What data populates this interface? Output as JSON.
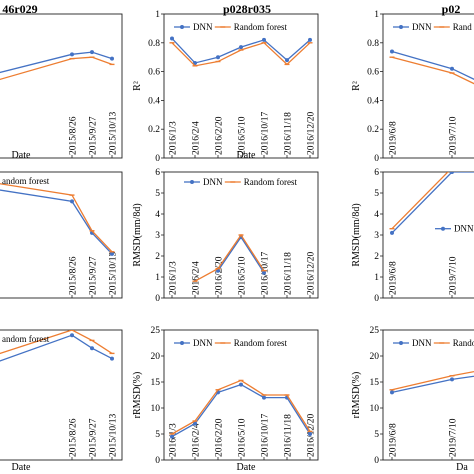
{
  "chart_data": [
    {
      "type": "line",
      "column_title": "46r029",
      "show_title": true,
      "ylabel": "",
      "xlabel": "Date",
      "ylim": [
        0,
        1
      ],
      "yticks": [],
      "show_legend": false,
      "legend_labels": [],
      "x": [
        "2015/8/26",
        "2015/9/27",
        "2015/10/13"
      ],
      "series": [
        {
          "name": "DNN",
          "color": "#4472c4",
          "points": [
            [
              -4,
              0.58
            ],
            [
              0,
              0.72
            ],
            [
              1,
              0.735
            ],
            [
              2,
              0.69
            ]
          ]
        },
        {
          "name": "Random forest",
          "color": "#ed7d31",
          "points": [
            [
              -4,
              0.53
            ],
            [
              0,
              0.69
            ],
            [
              1,
              0.7
            ],
            [
              2,
              0.65
            ]
          ]
        }
      ]
    },
    {
      "type": "line",
      "column_title": "p028r035",
      "show_title": true,
      "ylabel": "R²",
      "xlabel": "Date",
      "ylim": [
        0,
        1
      ],
      "yticks": [
        "0",
        "0.2",
        "0.4",
        "0.6",
        "0.8",
        "1"
      ],
      "show_legend": true,
      "legend_labels": [
        "DNN",
        "Random forest"
      ],
      "legend_position": "top",
      "x": [
        "2016/1/3",
        "2016/2/4",
        "2016/2/20",
        "2016/5/10",
        "2016/10/17",
        "2016/11/18",
        "2016/12/20"
      ],
      "series": [
        {
          "name": "DNN",
          "color": "#4472c4",
          "points": [
            [
              0,
              0.83
            ],
            [
              1,
              0.66
            ],
            [
              2,
              0.7
            ],
            [
              3,
              0.77
            ],
            [
              4,
              0.82
            ],
            [
              5,
              0.68
            ],
            [
              6,
              0.82
            ]
          ]
        },
        {
          "name": "Random forest",
          "color": "#ed7d31",
          "points": [
            [
              0,
              0.8
            ],
            [
              1,
              0.64
            ],
            [
              2,
              0.67
            ],
            [
              3,
              0.75
            ],
            [
              4,
              0.8
            ],
            [
              5,
              0.65
            ],
            [
              6,
              0.8
            ]
          ]
        }
      ]
    },
    {
      "type": "line",
      "column_title": "p02",
      "show_title": true,
      "ylabel": "R²",
      "xlabel": "",
      "ylim": [
        0,
        1
      ],
      "yticks": [
        "0",
        "0.2",
        "0.4",
        "0.6",
        "0.8",
        "1"
      ],
      "show_legend": true,
      "legend_labels": [
        "DNN",
        "Rand"
      ],
      "legend_position": "top",
      "x": [
        "2019/6/8",
        "2019/7/10"
      ],
      "series": [
        {
          "name": "DNN",
          "color": "#4472c4",
          "points": [
            [
              0,
              0.74
            ],
            [
              1,
              0.62
            ],
            [
              1.6,
              0.5
            ]
          ]
        },
        {
          "name": "Random forest",
          "color": "#ed7d31",
          "points": [
            [
              0,
              0.7
            ],
            [
              1,
              0.59
            ],
            [
              1.6,
              0.47
            ]
          ]
        }
      ]
    },
    {
      "type": "line",
      "column_title": "",
      "show_title": false,
      "ylabel": "",
      "xlabel": "",
      "ylim": [
        0,
        6
      ],
      "yticks": [],
      "show_legend": true,
      "legend_labels": [
        "andom forest"
      ],
      "legend_position": "top-left",
      "x": [
        "2015/8/26",
        "2015/9/27",
        "2015/10/13"
      ],
      "series": [
        {
          "name": "DNN",
          "color": "#4472c4",
          "points": [
            [
              -4,
              5.2
            ],
            [
              0,
              4.6
            ],
            [
              1,
              3.1
            ],
            [
              2,
              2.1
            ]
          ]
        },
        {
          "name": "Random forest",
          "color": "#ed7d31",
          "points": [
            [
              -4,
              5.5
            ],
            [
              0,
              4.9
            ],
            [
              1,
              3.2
            ],
            [
              2,
              2.2
            ]
          ]
        }
      ]
    },
    {
      "type": "line",
      "column_title": "",
      "show_title": false,
      "ylabel": "RMSD(mm/8d)",
      "xlabel": "",
      "ylim": [
        0,
        6
      ],
      "yticks": [
        "0",
        "1",
        "2",
        "3",
        "4",
        "5",
        "6"
      ],
      "show_legend": true,
      "legend_labels": [
        "DNN",
        "Random forest"
      ],
      "legend_position": "top-right",
      "x": [
        "2016/1/3",
        "2016/2/4",
        "2016/2/20",
        "2016/5/10",
        "2016/10/17",
        "2016/11/18",
        "2016/12/20"
      ],
      "series": [
        {
          "name": "DNN",
          "color": "#4472c4",
          "points": [
            [
              2,
              1.3
            ],
            [
              3,
              2.9
            ],
            [
              4,
              1.2
            ]
          ]
        },
        {
          "name": "Random forest",
          "color": "#ed7d31",
          "points": [
            [
              1,
              0.8
            ],
            [
              2,
              1.4
            ],
            [
              3,
              3.0
            ],
            [
              4,
              1.3
            ]
          ]
        }
      ]
    },
    {
      "type": "line",
      "column_title": "",
      "show_title": false,
      "ylabel": "RMSD(mm/8d)",
      "xlabel": "",
      "ylim": [
        0,
        6
      ],
      "yticks": [
        "0",
        "1",
        "2",
        "3",
        "4",
        "5",
        "6"
      ],
      "show_legend": true,
      "legend_labels": [
        "DNN"
      ],
      "legend_position": "right",
      "x": [
        "2019/6/8",
        "2019/7/10"
      ],
      "series": [
        {
          "name": "DNN",
          "color": "#4472c4",
          "points": [
            [
              0,
              3.1
            ],
            [
              1,
              6.0
            ],
            [
              1.6,
              6.0
            ]
          ]
        },
        {
          "name": "Random forest",
          "color": "#ed7d31",
          "points": [
            [
              0,
              3.3
            ],
            [
              1,
              6.2
            ],
            [
              1.6,
              6.3
            ]
          ]
        }
      ]
    },
    {
      "type": "line",
      "column_title": "",
      "show_title": false,
      "ylabel": "",
      "xlabel": "Date",
      "ylim": [
        0,
        25
      ],
      "yticks": [],
      "show_legend": true,
      "legend_labels": [
        "andom forest"
      ],
      "legend_position": "top-left",
      "x": [
        "2015/8/26",
        "2015/9/27",
        "2015/10/13"
      ],
      "series": [
        {
          "name": "DNN",
          "color": "#4472c4",
          "points": [
            [
              -4,
              18.5
            ],
            [
              0,
              24.0
            ],
            [
              1,
              21.5
            ],
            [
              2,
              19.5
            ]
          ]
        },
        {
          "name": "Random forest",
          "color": "#ed7d31",
          "points": [
            [
              -4,
              20.0
            ],
            [
              0,
              25.0
            ],
            [
              1,
              23.0
            ],
            [
              2,
              20.5
            ]
          ]
        }
      ]
    },
    {
      "type": "line",
      "column_title": "",
      "show_title": false,
      "ylabel": "rRMSD(%)",
      "xlabel": "Date",
      "ylim": [
        0,
        25
      ],
      "yticks": [
        "0",
        "5",
        "10",
        "15",
        "20",
        "25"
      ],
      "show_legend": true,
      "legend_labels": [
        "DNN",
        "Random forest"
      ],
      "legend_position": "top",
      "x": [
        "2016/1/3",
        "2016/2/4",
        "2016/2/20",
        "2016/5/10",
        "2016/10/17",
        "2016/11/18",
        "2016/12/20"
      ],
      "series": [
        {
          "name": "DNN",
          "color": "#4472c4",
          "points": [
            [
              0,
              4.5
            ],
            [
              1,
              7.0
            ],
            [
              2,
              13.0
            ],
            [
              3,
              14.5
            ],
            [
              4,
              12.0
            ],
            [
              5,
              12.0
            ],
            [
              6,
              5.0
            ]
          ]
        },
        {
          "name": "Random forest",
          "color": "#ed7d31",
          "points": [
            [
              0,
              5.0
            ],
            [
              1,
              7.5
            ],
            [
              2,
              13.5
            ],
            [
              3,
              15.3
            ],
            [
              4,
              12.5
            ],
            [
              5,
              12.5
            ],
            [
              6,
              5.5
            ]
          ]
        }
      ]
    },
    {
      "type": "line",
      "column_title": "",
      "show_title": false,
      "ylabel": "rRMSD(%)",
      "xlabel": "Da",
      "ylim": [
        0,
        25
      ],
      "yticks": [
        "0",
        "5",
        "10",
        "15",
        "20",
        "25"
      ],
      "show_legend": true,
      "legend_labels": [
        "DNN",
        "Randon"
      ],
      "legend_position": "top",
      "x": [
        "2019/6/8",
        "2019/7/10"
      ],
      "series": [
        {
          "name": "DNN",
          "color": "#4472c4",
          "points": [
            [
              0,
              13.0
            ],
            [
              1,
              15.5
            ],
            [
              1.6,
              16.5
            ]
          ]
        },
        {
          "name": "Random forest",
          "color": "#ed7d31",
          "points": [
            [
              0,
              13.5
            ],
            [
              1,
              16.2
            ],
            [
              1.6,
              17.5
            ]
          ]
        }
      ]
    }
  ]
}
